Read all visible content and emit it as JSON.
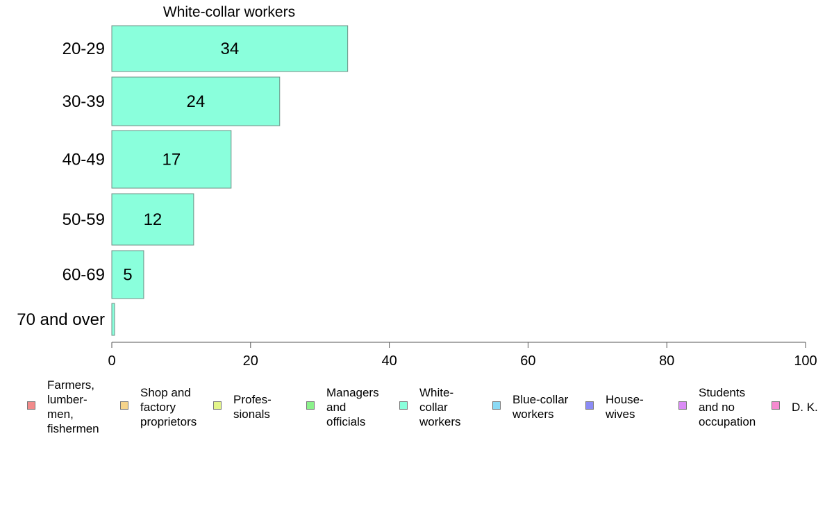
{
  "chart_data": {
    "type": "bar",
    "orientation": "horizontal",
    "title": "White-collar workers",
    "categories": [
      "20-29",
      "30-39",
      "40-49",
      "50-59",
      "60-69",
      "70 and over"
    ],
    "values": [
      34,
      24.2,
      17.2,
      11.8,
      4.6,
      0.4
    ],
    "data_labels": [
      "34",
      "24",
      "17",
      "12",
      "5",
      ""
    ],
    "xlim": [
      0,
      100
    ],
    "xticks": [
      "0",
      "20",
      "40",
      "60",
      "80",
      "100"
    ],
    "bar_color": "#8affdc",
    "grid": false,
    "legend_position": "bottom",
    "legend": [
      {
        "label": "Farmers, lumber- men, fishermen",
        "lines": [
          "Farmers,",
          "lumber-",
          "men,",
          "fishermen"
        ],
        "color": "#f28b8b"
      },
      {
        "label": "Shop and factory proprietors",
        "lines": [
          "Shop and",
          "factory",
          "proprietors"
        ],
        "color": "#f5d48b"
      },
      {
        "label": "Profes- sionals",
        "lines": [
          "Profes-",
          "sionals"
        ],
        "color": "#e3f58a"
      },
      {
        "label": "Managers and officials",
        "lines": [
          "Managers",
          "and",
          "officials"
        ],
        "color": "#8bf28b"
      },
      {
        "label": "White- collar workers",
        "lines": [
          "White-",
          "collar",
          "workers"
        ],
        "color": "#8affdc"
      },
      {
        "label": "Blue-collar workers",
        "lines": [
          "Blue-collar",
          "workers"
        ],
        "color": "#8bdaf5"
      },
      {
        "label": "House- wives",
        "lines": [
          "House-",
          "wives"
        ],
        "color": "#8b8bf5"
      },
      {
        "label": "Students and no occupation",
        "lines": [
          "Students",
          "and no",
          "occupation"
        ],
        "color": "#da8bf5"
      },
      {
        "label": "D. K.",
        "lines": [
          "D. K."
        ],
        "color": "#f58bd0"
      }
    ]
  }
}
